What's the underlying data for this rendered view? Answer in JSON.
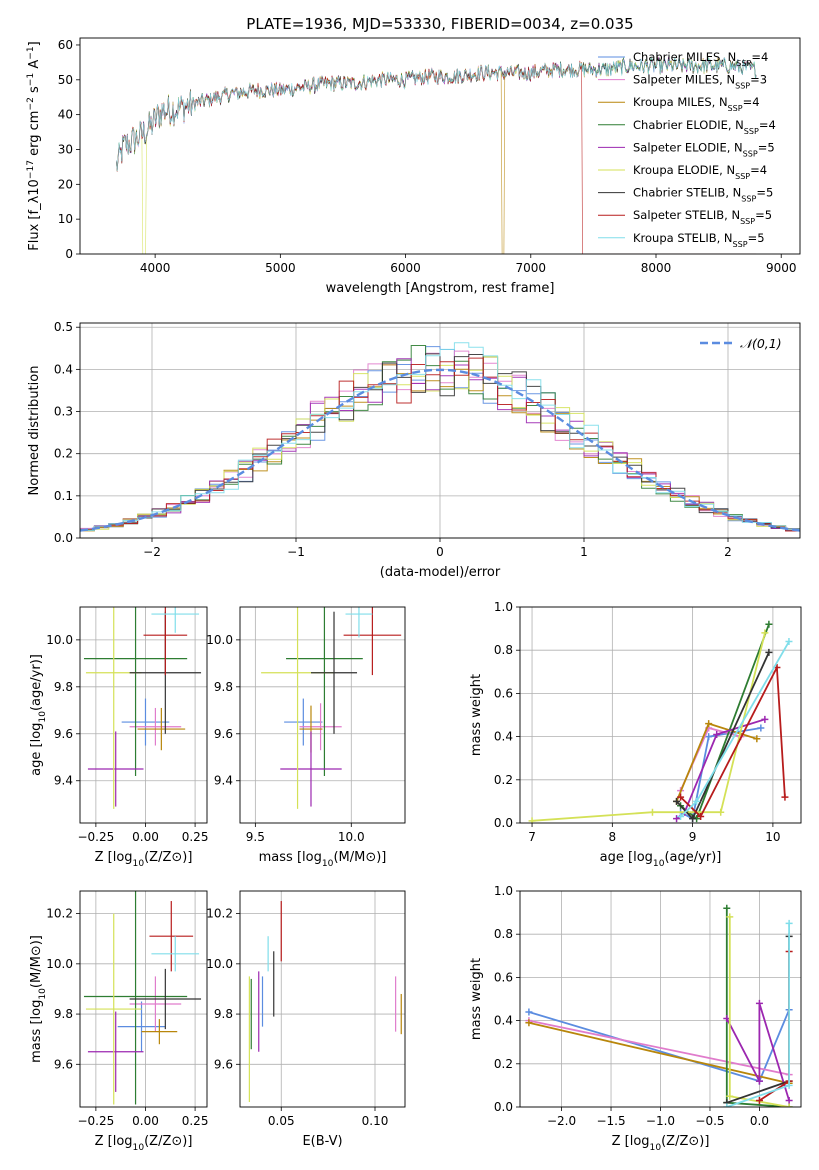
{
  "figure_title": "PLATE=1936, MJD=53330, FIBERID=0034, z=0.035",
  "models": [
    {
      "name": "Chabrier MILES",
      "nssp": "4",
      "color": "#5b8ce0"
    },
    {
      "name": "Salpeter MILES",
      "nssp": "3",
      "color": "#e07ccc"
    },
    {
      "name": "Kroupa MILES",
      "nssp": "4",
      "color": "#b8860b"
    },
    {
      "name": "Chabrier ELODIE",
      "nssp": "4",
      "color": "#2e7d32"
    },
    {
      "name": "Salpeter ELODIE",
      "nssp": "5",
      "color": "#9c27b0"
    },
    {
      "name": "Kroupa ELODIE",
      "nssp": "4",
      "color": "#d4e157"
    },
    {
      "name": "Chabrier STELIB",
      "nssp": "5",
      "color": "#333333"
    },
    {
      "name": "Salpeter STELIB",
      "nssp": "5",
      "color": "#b71c1c"
    },
    {
      "name": "Kroupa STELIB",
      "nssp": "5",
      "color": "#80deea"
    }
  ],
  "chart_data": [
    {
      "id": "spectrum",
      "type": "line",
      "xlabel": "wavelength [Angstrom, rest frame]",
      "ylabel": "Flux [f_λ10^{-17} erg cm^{-2} s^{-1} A^{-1}]",
      "xlim": [
        3400,
        9150
      ],
      "ylim": [
        0,
        62
      ],
      "xticks": [
        4000,
        5000,
        6000,
        7000,
        8000,
        9000
      ],
      "yticks": [
        0,
        10,
        20,
        30,
        40,
        50,
        60
      ],
      "grid": false,
      "legend": "right",
      "series": [
        {
          "x": [
            3690,
            3750,
            3850,
            3950,
            4050,
            4200,
            4400,
            4600,
            4800,
            5000,
            5200,
            5400,
            5600,
            5800,
            6000,
            6200,
            6400,
            6600,
            6800,
            7000,
            7200,
            7400,
            7600,
            7800,
            8000,
            8200,
            8400,
            8600,
            8800
          ],
          "y": [
            25,
            31,
            33,
            36,
            41,
            42,
            44,
            46,
            47,
            47,
            48,
            49,
            49,
            50,
            50,
            51,
            51,
            52,
            52,
            52,
            53,
            53,
            53,
            54,
            54,
            54,
            54,
            54,
            53
          ]
        }
      ]
    },
    {
      "id": "residuals",
      "type": "histogram",
      "xlabel": "(data-model)/error",
      "ylabel": "Normed distribution",
      "xlim": [
        -2.5,
        2.5
      ],
      "ylim": [
        0,
        0.51
      ],
      "xticks": [
        -2,
        -1,
        0,
        1,
        2
      ],
      "yticks": [
        0.0,
        0.1,
        0.2,
        0.3,
        0.4,
        0.5
      ],
      "grid": true,
      "legend": "top-right",
      "reference": {
        "name": "𝒩(0,1)",
        "color": "#5b8ce0",
        "mean": 0,
        "sigma": 1
      },
      "bin_width": 0.1
    },
    {
      "id": "age_vs_Z",
      "type": "errorbar",
      "xlabel": "Z [log10(Z/Z⊙)]",
      "ylabel": "age [log10(age/yr)]",
      "xlim": [
        -0.33,
        0.31
      ],
      "ylim": [
        9.22,
        10.14
      ],
      "xticks": [
        -0.25,
        0.0,
        0.25
      ],
      "yticks": [
        9.4,
        9.6,
        9.8,
        10.0
      ],
      "grid": true,
      "points": [
        {
          "m": 0,
          "x": 0.0,
          "xe": 0.12,
          "y": 9.65,
          "ye": 0.1
        },
        {
          "m": 1,
          "x": 0.05,
          "xe": 0.13,
          "y": 9.63,
          "ye": 0.08
        },
        {
          "m": 2,
          "x": 0.08,
          "xe": 0.12,
          "y": 9.62,
          "ye": 0.09
        },
        {
          "m": 3,
          "x": -0.05,
          "xe": 0.26,
          "y": 9.92,
          "ye": 0.5
        },
        {
          "m": 4,
          "x": -0.15,
          "xe": 0.14,
          "y": 9.45,
          "ye": 0.16
        },
        {
          "m": 5,
          "x": -0.16,
          "xe": 0.14,
          "y": 9.86,
          "ye": 0.58
        },
        {
          "m": 6,
          "x": 0.1,
          "xe": 0.18,
          "y": 9.86,
          "ye": 0.26
        },
        {
          "m": 7,
          "x": 0.1,
          "xe": 0.11,
          "y": 10.02,
          "ye": 0.17
        },
        {
          "m": 8,
          "x": 0.15,
          "xe": 0.12,
          "y": 10.11,
          "ye": 0.08
        }
      ]
    },
    {
      "id": "age_vs_mass",
      "type": "errorbar",
      "xlabel": "mass [log10(M/M⊙)]",
      "ylabel": "",
      "xlim": [
        9.42,
        10.28
      ],
      "ylim": [
        9.22,
        10.14
      ],
      "xticks": [
        9.5,
        10.0
      ],
      "yticks": [
        9.4,
        9.6,
        9.8,
        10.0
      ],
      "grid": true,
      "points": [
        {
          "m": 0,
          "x": 9.75,
          "xe": 0.1,
          "y": 9.65,
          "ye": 0.1
        },
        {
          "m": 1,
          "x": 9.84,
          "xe": 0.11,
          "y": 9.63,
          "ye": 0.1
        },
        {
          "m": 2,
          "x": 9.79,
          "xe": 0.06,
          "y": 9.62,
          "ye": 0.1
        },
        {
          "m": 3,
          "x": 9.86,
          "xe": 0.2,
          "y": 9.92,
          "ye": 0.5
        },
        {
          "m": 4,
          "x": 9.79,
          "xe": 0.16,
          "y": 9.45,
          "ye": 0.16
        },
        {
          "m": 5,
          "x": 9.72,
          "xe": 0.19,
          "y": 9.86,
          "ye": 0.58
        },
        {
          "m": 6,
          "x": 9.91,
          "xe": 0.12,
          "y": 9.86,
          "ye": 0.26
        },
        {
          "m": 7,
          "x": 10.11,
          "xe": 0.15,
          "y": 10.02,
          "ye": 0.17
        },
        {
          "m": 8,
          "x": 10.04,
          "xe": 0.07,
          "y": 10.11,
          "ye": 0.1
        }
      ]
    },
    {
      "id": "weight_vs_age",
      "type": "line",
      "xlabel": "age [log10(age/yr)]",
      "ylabel": "mass weight",
      "xlim": [
        6.85,
        10.35
      ],
      "ylim": [
        0,
        1
      ],
      "xticks": [
        7,
        8,
        9,
        10
      ],
      "yticks": [
        0.0,
        0.2,
        0.4,
        0.6,
        0.8,
        1.0
      ],
      "grid": true,
      "series": [
        {
          "m": 0,
          "x": [
            8.85,
            9.0,
            9.2,
            9.85
          ],
          "y": [
            0.05,
            0.02,
            0.4,
            0.44
          ]
        },
        {
          "m": 1,
          "x": [
            8.85,
            9.2,
            9.6
          ],
          "y": [
            0.15,
            0.44,
            0.4
          ]
        },
        {
          "m": 2,
          "x": [
            8.8,
            9.2,
            9.8
          ],
          "y": [
            0.1,
            0.46,
            0.39
          ]
        },
        {
          "m": 3,
          "x": [
            8.85,
            9.05,
            9.95
          ],
          "y": [
            0.08,
            0.02,
            0.92
          ]
        },
        {
          "m": 4,
          "x": [
            8.8,
            8.9,
            9.3,
            9.9
          ],
          "y": [
            0.02,
            0.05,
            0.41,
            0.48
          ]
        },
        {
          "m": 5,
          "x": [
            7.0,
            8.5,
            9.35,
            9.9
          ],
          "y": [
            0.01,
            0.05,
            0.05,
            0.88
          ]
        },
        {
          "m": 6,
          "x": [
            8.8,
            9.0,
            9.95
          ],
          "y": [
            0.1,
            0.02,
            0.79
          ]
        },
        {
          "m": 7,
          "x": [
            8.85,
            9.1,
            10.05,
            10.15
          ],
          "y": [
            0.12,
            0.03,
            0.72,
            0.12
          ]
        },
        {
          "m": 8,
          "x": [
            8.85,
            9.05,
            10.2
          ],
          "y": [
            0.03,
            0.1,
            0.84
          ]
        }
      ]
    },
    {
      "id": "mass_vs_Z",
      "type": "errorbar",
      "xlabel": "Z [log10(Z/Z⊙)]",
      "ylabel": "mass [log10(M/M⊙)]",
      "xlim": [
        -0.33,
        0.31
      ],
      "ylim": [
        9.43,
        10.29
      ],
      "xticks": [
        -0.25,
        0.0,
        0.25
      ],
      "yticks": [
        9.6,
        9.8,
        10.0,
        10.2
      ],
      "grid": true,
      "points": [
        {
          "m": 0,
          "x": -0.02,
          "xe": 0.12,
          "y": 9.75,
          "ye": 0.1
        },
        {
          "m": 1,
          "x": 0.05,
          "xe": 0.13,
          "y": 9.84,
          "ye": 0.11
        },
        {
          "m": 2,
          "x": 0.07,
          "xe": 0.09,
          "y": 9.73,
          "ye": 0.05
        },
        {
          "m": 3,
          "x": -0.05,
          "xe": 0.26,
          "y": 9.87,
          "ye": 0.43
        },
        {
          "m": 4,
          "x": -0.15,
          "xe": 0.14,
          "y": 9.65,
          "ye": 0.16
        },
        {
          "m": 5,
          "x": -0.16,
          "xe": 0.14,
          "y": 9.82,
          "ye": 0.38
        },
        {
          "m": 6,
          "x": 0.1,
          "xe": 0.18,
          "y": 9.86,
          "ye": 0.12
        },
        {
          "m": 7,
          "x": 0.13,
          "xe": 0.11,
          "y": 10.11,
          "ye": 0.14
        },
        {
          "m": 8,
          "x": 0.15,
          "xe": 0.12,
          "y": 10.04,
          "ye": 0.07
        }
      ]
    },
    {
      "id": "mass_vs_EBV",
      "type": "errorbar",
      "xlabel": "E(B-V)",
      "ylabel": "",
      "xlim": [
        0.028,
        0.116
      ],
      "ylim": [
        9.43,
        10.29
      ],
      "xticks": [
        0.05,
        0.1
      ],
      "yticks": [
        9.6,
        9.8,
        10.0,
        10.2
      ],
      "grid": true,
      "points": [
        {
          "m": 0,
          "x": 0.04,
          "y": 9.85,
          "ye": 0.1
        },
        {
          "m": 1,
          "x": 0.111,
          "y": 9.84,
          "ye": 0.11
        },
        {
          "m": 2,
          "x": 0.114,
          "y": 9.8,
          "ye": 0.08
        },
        {
          "m": 3,
          "x": 0.034,
          "y": 9.8,
          "ye": 0.14
        },
        {
          "m": 4,
          "x": 0.038,
          "y": 9.81,
          "ye": 0.16
        },
        {
          "m": 5,
          "x": 0.033,
          "y": 9.7,
          "ye": 0.25
        },
        {
          "m": 6,
          "x": 0.046,
          "y": 9.92,
          "ye": 0.13
        },
        {
          "m": 7,
          "x": 0.05,
          "y": 10.13,
          "ye": 0.12
        },
        {
          "m": 8,
          "x": 0.043,
          "y": 10.04,
          "ye": 0.07
        }
      ]
    },
    {
      "id": "weight_vs_Z",
      "type": "line",
      "xlabel": "Z [log10(Z/Z⊙)]",
      "ylabel": "mass weight",
      "xlim": [
        -2.42,
        0.42
      ],
      "ylim": [
        0,
        1
      ],
      "xticks": [
        -2.0,
        -1.5,
        -1.0,
        -0.5,
        0.0
      ],
      "yticks": [
        0.0,
        0.2,
        0.4,
        0.6,
        0.8,
        1.0
      ],
      "grid": true,
      "series": [
        {
          "m": 0,
          "x": [
            -2.33,
            0.0,
            0.3
          ],
          "y": [
            0.44,
            0.12,
            0.45
          ]
        },
        {
          "m": 1,
          "x": [
            -2.33,
            0.3
          ],
          "y": [
            0.4,
            0.15
          ]
        },
        {
          "m": 2,
          "x": [
            -2.33,
            0.3
          ],
          "y": [
            0.39,
            0.11
          ]
        },
        {
          "m": 3,
          "x": [
            -0.33,
            -0.33,
            0.3
          ],
          "y": [
            0.92,
            0.02,
            0.0
          ]
        },
        {
          "m": 4,
          "x": [
            -0.33,
            0.0,
            0.0,
            0.3
          ],
          "y": [
            0.41,
            0.12,
            0.48,
            0.03
          ]
        },
        {
          "m": 5,
          "x": [
            -0.3,
            -0.3,
            0.3
          ],
          "y": [
            0.88,
            0.05,
            0.0
          ]
        },
        {
          "m": 6,
          "x": [
            -0.33,
            0.3,
            0.3
          ],
          "y": [
            0.02,
            0.12,
            0.79
          ]
        },
        {
          "m": 7,
          "x": [
            0.0,
            0.3,
            0.3
          ],
          "y": [
            0.03,
            0.12,
            0.72
          ]
        },
        {
          "m": 8,
          "x": [
            -0.33,
            0.3,
            0.3
          ],
          "y": [
            0.0,
            0.1,
            0.85
          ]
        }
      ]
    }
  ]
}
